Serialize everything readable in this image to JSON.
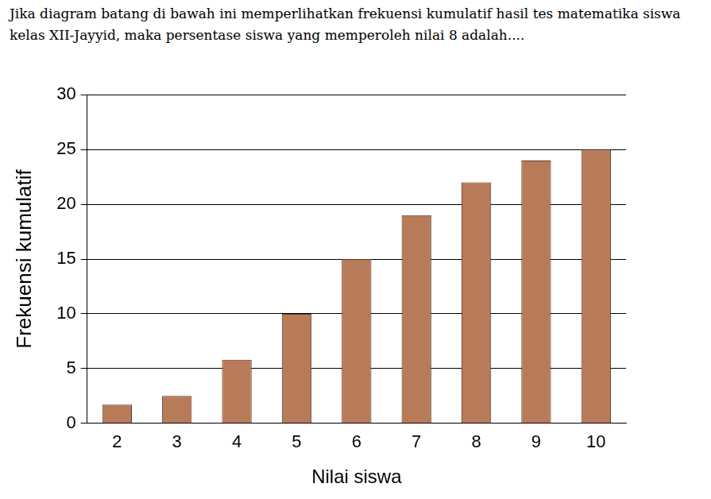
{
  "chart_data": {
    "type": "bar",
    "title": "Jika diagram batang di bawah ini memperlihatkan frekuensi kumulatif hasil tes matematika siswa kelas XII-Jayyid, maka persentase siswa yang memperoleh nilai 8 adalah....",
    "x_label": "Nilai siswa",
    "y_label": "Frekuensi kumulatif",
    "categories": [
      "2",
      "3",
      "4",
      "5",
      "6",
      "7",
      "8",
      "9",
      "10"
    ],
    "values": [
      1.7,
      2.5,
      5.8,
      10,
      15,
      19,
      22,
      24,
      25
    ],
    "color": "#b87b5a",
    "ylim": [
      0,
      30
    ],
    "yticks": [
      0,
      5,
      10,
      15,
      20,
      25,
      30
    ],
    "grid": true
  }
}
